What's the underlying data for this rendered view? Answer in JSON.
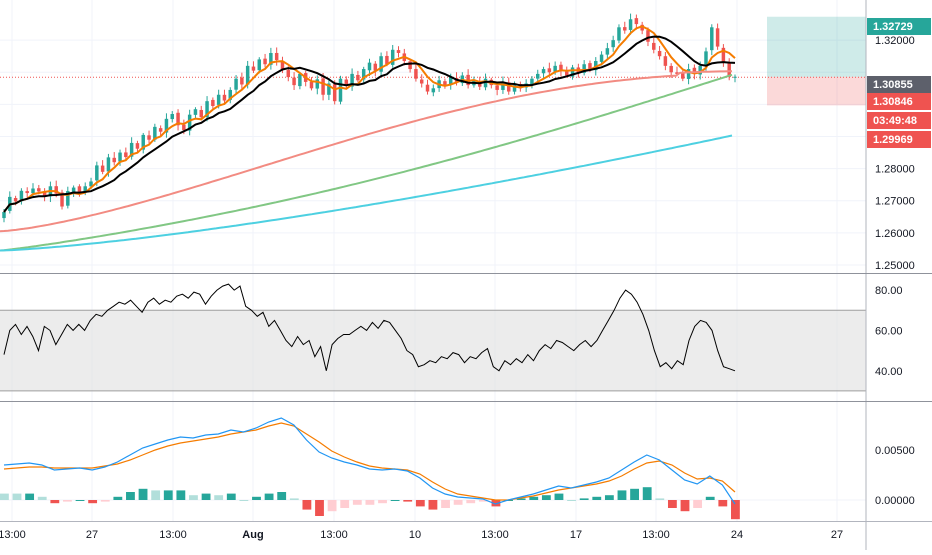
{
  "chart_data": [
    {
      "type": "candlestick",
      "panel": "price",
      "y_ticks": [
        1.25,
        1.26,
        1.27,
        1.28,
        1.32
      ],
      "y_tick_labels": [
        "1.25000",
        "1.26000",
        "1.27000",
        "1.28000",
        "1.32000"
      ],
      "ylim": [
        1.2475,
        1.3325
      ],
      "x_ticks": [
        "13:00",
        "27",
        "13:00",
        "Aug",
        "13:00",
        "10",
        "13:00",
        "17",
        "13:00",
        "24",
        "27"
      ],
      "grid": true,
      "price_badges": [
        {
          "value": "1.32729",
          "color": "#26a69a"
        },
        {
          "value": "1.30855",
          "color": "#5d606b"
        },
        {
          "value": "1.30846",
          "color": "#ef5350"
        },
        {
          "value": "03:49:48",
          "color": "#ef5350"
        },
        {
          "value": "1.29969",
          "color": "#ef5350"
        }
      ],
      "position_zone": {
        "take_profit": 1.32729,
        "entry": 1.30855,
        "stop_loss": 1.29969
      },
      "current_price": 1.30846,
      "candles_close": [
        1.2665,
        1.2712,
        1.2698,
        1.2731,
        1.2724,
        1.2738,
        1.2729,
        1.2715,
        1.2745,
        1.2722,
        1.2682,
        1.273,
        1.2741,
        1.2728,
        1.2745,
        1.276,
        1.281,
        1.279,
        1.2835,
        1.282,
        1.285,
        1.2836,
        1.288,
        1.2862,
        1.2905,
        1.289,
        1.293,
        1.2915,
        1.2955,
        1.297,
        1.2935,
        1.292,
        1.2968,
        1.2985,
        1.296,
        1.301,
        1.2995,
        1.303,
        1.3012,
        1.3045,
        1.308,
        1.3062,
        1.312,
        1.3105,
        1.314,
        1.3125,
        1.316,
        1.3138,
        1.311,
        1.3085,
        1.306,
        1.3095,
        1.307,
        1.305,
        1.3078,
        1.303,
        1.3065,
        1.301,
        1.308,
        1.3058,
        1.3095,
        1.3075,
        1.311,
        1.313,
        1.3105,
        1.315,
        1.3125,
        1.317,
        1.316,
        1.3135,
        1.311,
        1.308,
        1.3065,
        1.304,
        1.305,
        1.3075,
        1.306,
        1.3085,
        1.307,
        1.309,
        1.306,
        1.3075,
        1.3055,
        1.308,
        1.306,
        1.3045,
        1.307,
        1.304,
        1.306,
        1.305,
        1.3065,
        1.308,
        1.3095,
        1.311,
        1.31,
        1.312,
        1.3105,
        1.309,
        1.3115,
        1.31,
        1.3125,
        1.311,
        1.3135,
        1.3155,
        1.3175,
        1.32,
        1.324,
        1.323,
        1.3265,
        1.325,
        1.323,
        1.3195,
        1.317,
        1.315,
        1.312,
        1.31,
        1.3095,
        1.308,
        1.311,
        1.3095,
        1.312,
        1.3165,
        1.324,
        1.318,
        1.313,
        1.3085,
        1.3086
      ]
    },
    {
      "type": "line",
      "panel": "rsi",
      "y_ticks": [
        40,
        60,
        80
      ],
      "y_tick_labels": [
        "40.00",
        "60.00",
        "80.00"
      ],
      "ylim": [
        25,
        88
      ],
      "band": [
        30,
        70
      ]
    },
    {
      "type": "line+histogram",
      "panel": "macd",
      "y_ticks": [
        0.0,
        0.005
      ],
      "y_tick_labels": [
        "0.00000",
        "0.00500"
      ],
      "ylim": [
        -0.0021,
        0.0098
      ]
    }
  ]
}
